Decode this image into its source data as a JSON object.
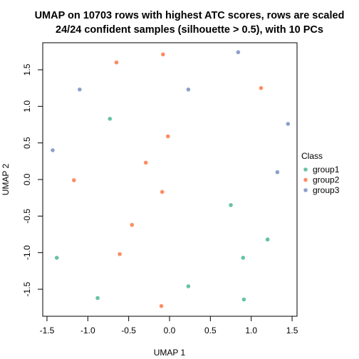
{
  "chart_data": {
    "type": "scatter",
    "title": "UMAP on 10703 rows with highest ATC scores, rows are scaled",
    "subtitle": "24/24 confident samples (silhouette > 0.5), with 10 PCs",
    "xlabel": "UMAP 1",
    "ylabel": "UMAP 2",
    "xlim": [
      -1.5,
      1.5
    ],
    "ylim": [
      -1.5,
      1.5
    ],
    "xticks": [
      -1.5,
      -1.0,
      -0.5,
      0.0,
      0.5,
      1.0,
      1.5
    ],
    "xtick_labels": [
      "-1.5",
      "-1.0",
      "-0.5",
      "0.0",
      "0.5",
      "1.0",
      "1.5"
    ],
    "yticks": [
      -1.5,
      -1.0,
      -0.5,
      0.0,
      0.5,
      1.0,
      1.5
    ],
    "ytick_labels": [
      "-1.5",
      "-1.0",
      "-0.5",
      "0.0",
      "0.5",
      "1.0",
      "1.5"
    ],
    "grid": false,
    "legend_placement": "right",
    "legend": {
      "title": "Class",
      "items": [
        {
          "name": "group1",
          "color": "#66C2A5"
        },
        {
          "name": "group2",
          "color": "#FC8D62"
        },
        {
          "name": "group3",
          "color": "#8DA0CB"
        }
      ]
    },
    "series": [
      {
        "name": "group1",
        "color": "#66C2A5",
        "points": [
          {
            "x": -0.73,
            "y": 0.83
          },
          {
            "x": 0.75,
            "y": -0.35
          },
          {
            "x": 1.2,
            "y": -0.82
          },
          {
            "x": 0.9,
            "y": -1.07
          },
          {
            "x": -1.38,
            "y": -1.07
          },
          {
            "x": 0.23,
            "y": -1.46
          },
          {
            "x": -0.88,
            "y": -1.62
          },
          {
            "x": 0.91,
            "y": -1.64
          }
        ]
      },
      {
        "name": "group2",
        "color": "#FC8D62",
        "points": [
          {
            "x": -0.08,
            "y": 1.71
          },
          {
            "x": -0.65,
            "y": 1.6
          },
          {
            "x": 1.12,
            "y": 1.25
          },
          {
            "x": -0.02,
            "y": 0.59
          },
          {
            "x": -0.29,
            "y": 0.23
          },
          {
            "x": -1.17,
            "y": -0.01
          },
          {
            "x": -0.09,
            "y": -0.17
          },
          {
            "x": -0.46,
            "y": -0.62
          },
          {
            "x": -0.61,
            "y": -1.02
          },
          {
            "x": -0.1,
            "y": -1.73
          }
        ]
      },
      {
        "name": "group3",
        "color": "#8DA0CB",
        "points": [
          {
            "x": 0.84,
            "y": 1.74
          },
          {
            "x": -1.1,
            "y": 1.23
          },
          {
            "x": 0.23,
            "y": 1.23
          },
          {
            "x": 1.45,
            "y": 0.76
          },
          {
            "x": -1.43,
            "y": 0.4
          },
          {
            "x": 1.32,
            "y": 0.1
          }
        ]
      }
    ]
  }
}
